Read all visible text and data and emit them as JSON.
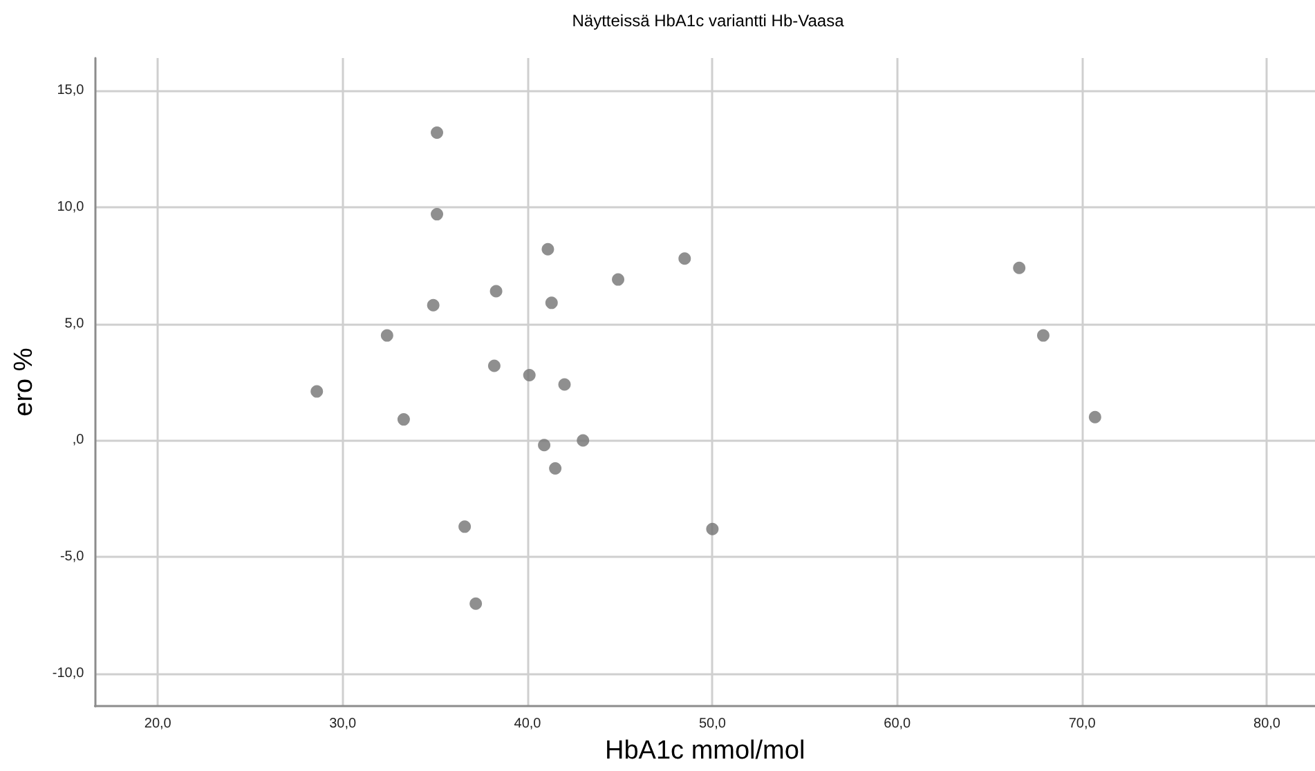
{
  "chart_data": {
    "type": "scatter",
    "title": "Näytteissä HbA1c variantti Hb-Vaasa",
    "xlabel": "HbA1c mmol/mol",
    "ylabel": "ero %",
    "x": [
      35.1,
      35.1,
      41.1,
      48.5,
      44.9,
      38.3,
      34.9,
      41.3,
      32.4,
      38.2,
      40.1,
      42.0,
      28.6,
      33.3,
      40.9,
      43.0,
      41.5,
      36.6,
      50.0,
      37.2,
      66.6,
      67.9,
      70.7
    ],
    "series": [
      {
        "color": "#737373",
        "values": [
          13.2,
          9.7,
          8.2,
          7.8,
          6.9,
          6.4,
          5.8,
          5.9,
          4.5,
          3.2,
          2.8,
          2.4,
          2.1,
          0.9,
          -0.2,
          0.0,
          -1.2,
          -3.7,
          -3.8,
          -7.0,
          7.4,
          4.5,
          1.0
        ]
      }
    ],
    "xlim": [
      16.6,
      82.6
    ],
    "ylim": [
      -11.4,
      16.4
    ],
    "xticks": [
      {
        "value": 20,
        "label": "20,0"
      },
      {
        "value": 30,
        "label": "30,0"
      },
      {
        "value": 40,
        "label": "40,0"
      },
      {
        "value": 50,
        "label": "50,0"
      },
      {
        "value": 60,
        "label": "60,0"
      },
      {
        "value": 70,
        "label": "70,0"
      },
      {
        "value": 80,
        "label": "80,0"
      }
    ],
    "yticks": [
      {
        "value": -10,
        "label": "-10,0"
      },
      {
        "value": -5,
        "label": "-5,0"
      },
      {
        "value": 0,
        "label": ",0"
      },
      {
        "value": 5,
        "label": "5,0"
      },
      {
        "value": 10,
        "label": "10,0"
      },
      {
        "value": 15,
        "label": "15,0"
      }
    ],
    "grid": true,
    "marker": "circle"
  }
}
